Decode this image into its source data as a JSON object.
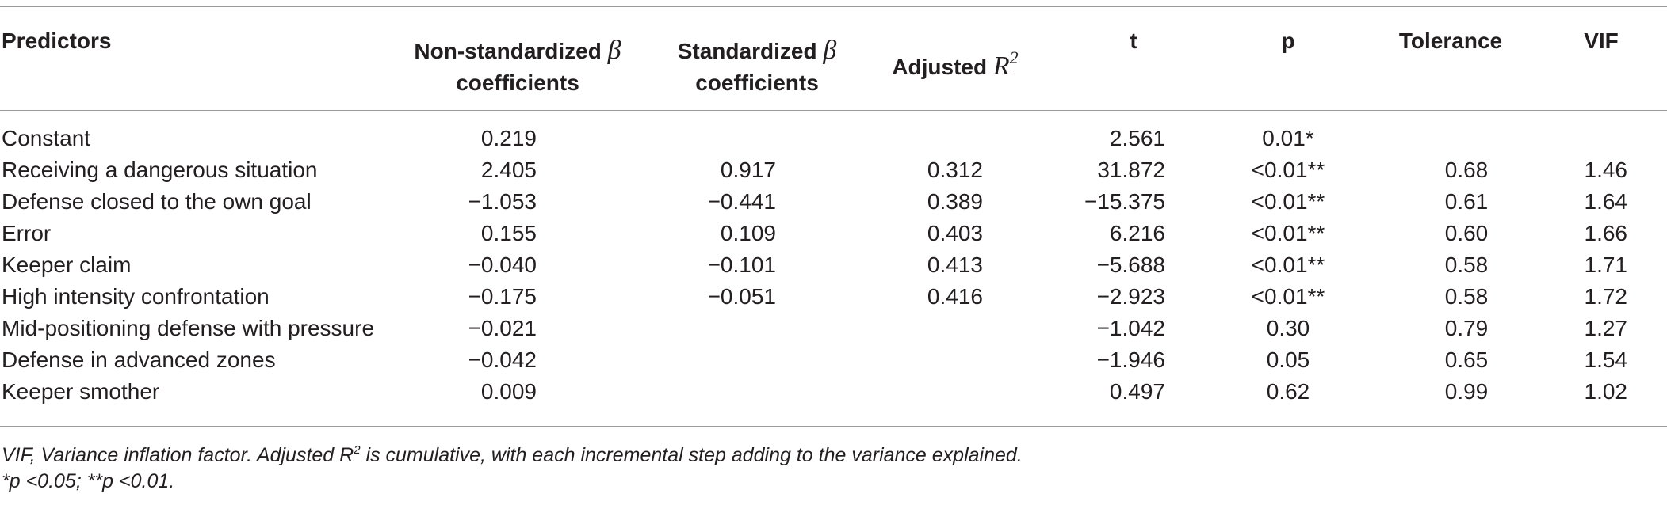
{
  "headers": {
    "predictors": "Predictors",
    "nonstd_line1": "Non-standardized",
    "nonstd_beta": "β",
    "nonstd_line2": "coefficients",
    "std_line1": "Standardized",
    "std_beta": "β",
    "std_line2": "coefficients",
    "adj_label": "Adjusted",
    "adj_r": "R",
    "adj_sup": "2",
    "t": "t",
    "p": "p",
    "tolerance": "Tolerance",
    "vif": "VIF"
  },
  "rows": [
    {
      "predictor": "Constant",
      "nonstd": "0.219",
      "std": "",
      "adj_r2": "",
      "t": "2.561",
      "p": "0.01*",
      "tolerance": "",
      "vif": ""
    },
    {
      "predictor": "Receiving a dangerous situation",
      "nonstd": "2.405",
      "std": "0.917",
      "adj_r2": "0.312",
      "t": "31.872",
      "p": "<0.01**",
      "tolerance": "0.68",
      "vif": "1.46"
    },
    {
      "predictor": "Defense closed to the own goal",
      "nonstd": "−1.053",
      "std": "−0.441",
      "adj_r2": "0.389",
      "t": "−15.375",
      "p": "<0.01**",
      "tolerance": "0.61",
      "vif": "1.64"
    },
    {
      "predictor": "Error",
      "nonstd": "0.155",
      "std": "0.109",
      "adj_r2": "0.403",
      "t": "6.216",
      "p": "<0.01**",
      "tolerance": "0.60",
      "vif": "1.66"
    },
    {
      "predictor": "Keeper claim",
      "nonstd": "−0.040",
      "std": "−0.101",
      "adj_r2": "0.413",
      "t": "−5.688",
      "p": "<0.01**",
      "tolerance": "0.58",
      "vif": "1.71"
    },
    {
      "predictor": "High intensity confrontation",
      "nonstd": "−0.175",
      "std": "−0.051",
      "adj_r2": "0.416",
      "t": "−2.923",
      "p": "<0.01**",
      "tolerance": "0.58",
      "vif": "1.72"
    },
    {
      "predictor": "Mid-positioning defense with pressure",
      "nonstd": "−0.021",
      "std": "",
      "adj_r2": "",
      "t": "−1.042",
      "p": "0.30",
      "tolerance": "0.79",
      "vif": "1.27"
    },
    {
      "predictor": "Defense in advanced zones",
      "nonstd": "−0.042",
      "std": "",
      "adj_r2": "",
      "t": "−1.946",
      "p": "0.05",
      "tolerance": "0.65",
      "vif": "1.54"
    },
    {
      "predictor": "Keeper smother",
      "nonstd": "0.009",
      "std": "",
      "adj_r2": "",
      "t": "0.497",
      "p": "0.62",
      "tolerance": "0.99",
      "vif": "1.02"
    }
  ],
  "footnotes": {
    "line1_a": "VIF, Variance inflation factor. Adjusted R",
    "line1_sup": "2",
    "line1_b": " is cumulative, with each incremental step adding to the variance explained.",
    "line2": "*p <0.05; **p <0.01."
  }
}
